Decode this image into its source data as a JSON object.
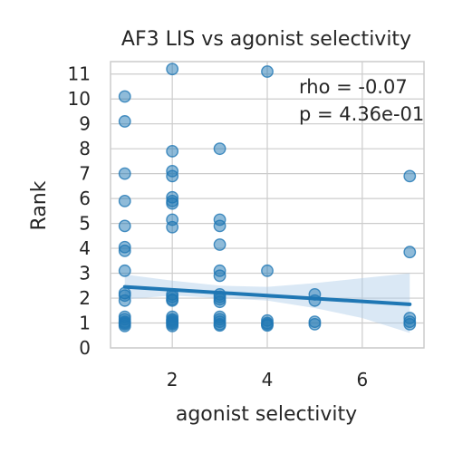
{
  "chart_data": {
    "type": "scatter",
    "title": "AF3 LIS vs agonist selectivity",
    "xlabel": "agonist selectivity",
    "ylabel": "Rank",
    "xlim": [
      0.7,
      7.3
    ],
    "ylim": [
      0,
      11.5
    ],
    "xticks": [
      2,
      4,
      6
    ],
    "yticks": [
      0,
      1,
      2,
      3,
      4,
      5,
      6,
      7,
      8,
      9,
      10,
      11
    ],
    "grid": true,
    "annotations": {
      "rho": "rho = -0.07",
      "p": "p = 4.36e-01"
    },
    "colors": {
      "points": "#1f77b4",
      "line": "#1f77b4",
      "band": "#aecde8",
      "grid": "#cccccc"
    },
    "points": [
      {
        "x": 1,
        "y": 10.1
      },
      {
        "x": 1,
        "y": 9.1
      },
      {
        "x": 1,
        "y": 7.0
      },
      {
        "x": 1,
        "y": 5.9
      },
      {
        "x": 1,
        "y": 4.9
      },
      {
        "x": 1,
        "y": 4.05
      },
      {
        "x": 1,
        "y": 3.9
      },
      {
        "x": 1,
        "y": 3.1
      },
      {
        "x": 1,
        "y": 2.2
      },
      {
        "x": 1,
        "y": 2.1
      },
      {
        "x": 1,
        "y": 1.9
      },
      {
        "x": 1,
        "y": 1.25
      },
      {
        "x": 1,
        "y": 1.15
      },
      {
        "x": 1,
        "y": 1.05
      },
      {
        "x": 1,
        "y": 1.0
      },
      {
        "x": 1,
        "y": 0.95
      },
      {
        "x": 1,
        "y": 0.88
      },
      {
        "x": 2,
        "y": 11.2
      },
      {
        "x": 2,
        "y": 7.9
      },
      {
        "x": 2,
        "y": 7.1
      },
      {
        "x": 2,
        "y": 6.9
      },
      {
        "x": 2,
        "y": 6.05
      },
      {
        "x": 2,
        "y": 5.9
      },
      {
        "x": 2,
        "y": 5.8
      },
      {
        "x": 2,
        "y": 5.15
      },
      {
        "x": 2,
        "y": 4.85
      },
      {
        "x": 2,
        "y": 2.15
      },
      {
        "x": 2,
        "y": 2.05
      },
      {
        "x": 2,
        "y": 1.95
      },
      {
        "x": 2,
        "y": 1.9
      },
      {
        "x": 2,
        "y": 1.25
      },
      {
        "x": 2,
        "y": 1.15
      },
      {
        "x": 2,
        "y": 1.1
      },
      {
        "x": 2,
        "y": 1.05
      },
      {
        "x": 2,
        "y": 1.0
      },
      {
        "x": 2,
        "y": 0.95
      },
      {
        "x": 2,
        "y": 0.88
      },
      {
        "x": 3,
        "y": 8.0
      },
      {
        "x": 3,
        "y": 5.15
      },
      {
        "x": 3,
        "y": 4.9
      },
      {
        "x": 3,
        "y": 4.15
      },
      {
        "x": 3,
        "y": 3.1
      },
      {
        "x": 3,
        "y": 2.9
      },
      {
        "x": 3,
        "y": 2.15
      },
      {
        "x": 3,
        "y": 2.05
      },
      {
        "x": 3,
        "y": 1.95
      },
      {
        "x": 3,
        "y": 1.85
      },
      {
        "x": 3,
        "y": 1.25
      },
      {
        "x": 3,
        "y": 1.15
      },
      {
        "x": 3,
        "y": 1.05
      },
      {
        "x": 3,
        "y": 0.95
      },
      {
        "x": 3,
        "y": 0.9
      },
      {
        "x": 4,
        "y": 11.1
      },
      {
        "x": 4,
        "y": 3.1
      },
      {
        "x": 4,
        "y": 1.1
      },
      {
        "x": 4,
        "y": 1.0
      },
      {
        "x": 4,
        "y": 0.95
      },
      {
        "x": 4,
        "y": 0.9
      },
      {
        "x": 5,
        "y": 2.15
      },
      {
        "x": 5,
        "y": 1.9
      },
      {
        "x": 5,
        "y": 1.05
      },
      {
        "x": 5,
        "y": 0.95
      },
      {
        "x": 7,
        "y": 6.9
      },
      {
        "x": 7,
        "y": 3.85
      },
      {
        "x": 7,
        "y": 1.2
      },
      {
        "x": 7,
        "y": 1.05
      },
      {
        "x": 7,
        "y": 0.95
      }
    ],
    "regression": {
      "x": [
        1,
        7
      ],
      "y": [
        2.45,
        1.75
      ]
    },
    "confidence_band": {
      "x": [
        1,
        2,
        3,
        4,
        5,
        6,
        7
      ],
      "upper": [
        2.95,
        2.7,
        2.5,
        2.45,
        2.6,
        2.8,
        3.0
      ],
      "lower": [
        1.95,
        2.1,
        2.0,
        1.9,
        1.6,
        1.2,
        0.6
      ]
    }
  }
}
